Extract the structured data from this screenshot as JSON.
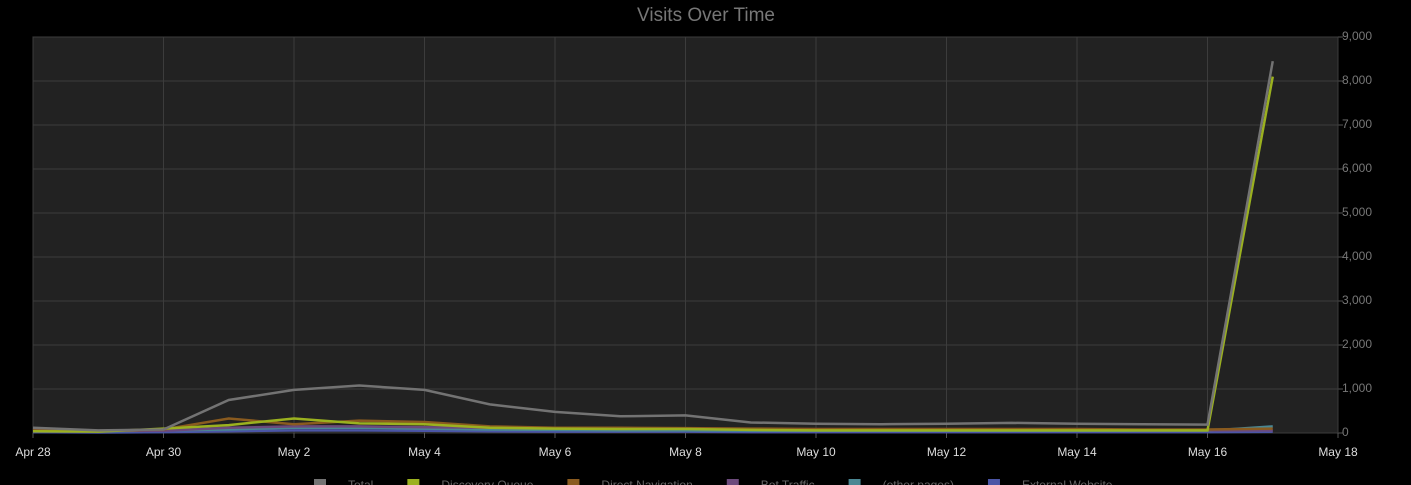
{
  "chart_data": {
    "type": "line",
    "title": "Visits Over Time",
    "categories": [
      "Apr 28",
      null,
      "Apr 30",
      null,
      "May 2",
      null,
      "May 4",
      null,
      "May 6",
      null,
      "May 8",
      null,
      "May 10",
      null,
      "May 12",
      null,
      "May 14",
      null,
      "May 16",
      null,
      "May 18"
    ],
    "series": [
      {
        "name": "Total",
        "color": "#737373",
        "values": [
          120,
          60,
          80,
          750,
          980,
          1080,
          980,
          650,
          480,
          380,
          400,
          240,
          210,
          200,
          210,
          230,
          210,
          200,
          190,
          8450,
          null
        ]
      },
      {
        "name": "Discovery Queue",
        "color": "#9bb11f",
        "values": [
          40,
          30,
          100,
          180,
          330,
          220,
          200,
          120,
          100,
          90,
          90,
          70,
          60,
          60,
          60,
          60,
          60,
          60,
          60,
          8100,
          null
        ]
      },
      {
        "name": "Direct Navigation",
        "color": "#8a5b1f",
        "values": [
          60,
          50,
          80,
          330,
          200,
          280,
          250,
          150,
          120,
          120,
          110,
          100,
          90,
          90,
          90,
          90,
          90,
          80,
          80,
          100,
          null
        ]
      },
      {
        "name": "Bot Traffic",
        "color": "#6c4a7c",
        "values": [
          100,
          50,
          50,
          120,
          150,
          150,
          130,
          120,
          110,
          110,
          100,
          80,
          70,
          70,
          70,
          70,
          70,
          60,
          60,
          60,
          null
        ]
      },
      {
        "name": "(other pages)",
        "color": "#4a8793",
        "values": [
          60,
          40,
          60,
          80,
          120,
          120,
          100,
          80,
          70,
          60,
          60,
          50,
          50,
          50,
          50,
          50,
          50,
          50,
          50,
          150,
          null
        ]
      },
      {
        "name": "External Website",
        "color": "#4b55a6",
        "values": [
          20,
          10,
          20,
          40,
          60,
          60,
          50,
          40,
          30,
          30,
          30,
          20,
          20,
          20,
          20,
          20,
          20,
          20,
          20,
          30,
          null
        ]
      }
    ],
    "ylim": [
      0,
      9000
    ],
    "yticks": [
      0,
      {
        "value": 1000,
        "label": "1,000"
      },
      {
        "value": 2000,
        "label": "2,000"
      },
      {
        "value": 3000,
        "label": "3,000"
      },
      {
        "value": 4000,
        "label": "4,000"
      },
      {
        "value": 5000,
        "label": "5,000"
      },
      {
        "value": 6000,
        "label": "6,000"
      },
      {
        "value": 7000,
        "label": "7,000"
      },
      {
        "value": 8000,
        "label": "8,000"
      },
      {
        "value": 9000,
        "label": "9,000"
      }
    ],
    "grid": true
  }
}
